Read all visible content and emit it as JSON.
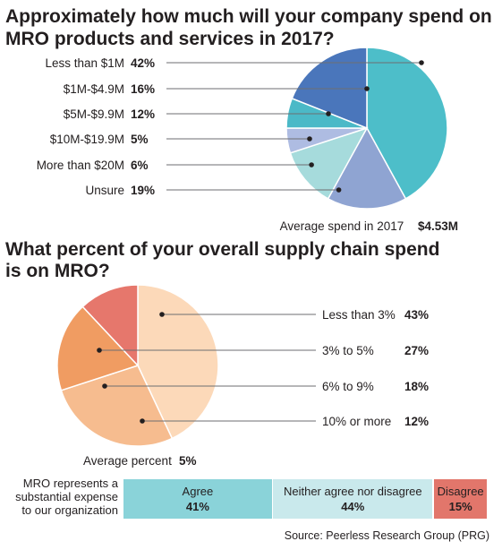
{
  "colors": {
    "text": "#231f20",
    "leader": "#6d6e71",
    "separator": "#ffffff"
  },
  "chart_data": [
    {
      "type": "pie",
      "title": "Approximately how much will your company spend on MRO products and services in 2017?",
      "categories": [
        "Less than $1M",
        "$1M-$4.9M",
        "$5M-$9.9M",
        "$10M-$19.9M",
        "More than $20M",
        "Unsure"
      ],
      "value_labels": [
        "42%",
        "16%",
        "12%",
        "5%",
        "6%",
        "19%"
      ],
      "values": [
        42,
        16,
        12,
        5,
        6,
        19
      ],
      "colors": [
        "#4dbec9",
        "#8fa4d2",
        "#a6dbdc",
        "#aebce2",
        "#4bb9c7",
        "#4a76bb"
      ],
      "annotation": {
        "label": "Average spend in 2017",
        "value": "$4.53M"
      }
    },
    {
      "type": "pie",
      "title": "What percent of your overall supply chain spend is on MRO?",
      "categories": [
        "Less than 3%",
        "3% to 5%",
        "6% to 9%",
        "10% or more"
      ],
      "value_labels": [
        "43%",
        "27%",
        "18%",
        "12%"
      ],
      "values": [
        43,
        27,
        18,
        12
      ],
      "colors": [
        "#fcd9b9",
        "#f6bc8f",
        "#f09c62",
        "#e6776c"
      ],
      "annotation": {
        "label": "Average percent",
        "value": "5%"
      }
    },
    {
      "type": "bar",
      "title": "MRO represents a substantial expense to our organization",
      "categories": [
        "Agree",
        "Neither agree nor disagree",
        "Disagree"
      ],
      "value_labels": [
        "41%",
        "44%",
        "15%"
      ],
      "values": [
        41,
        44,
        15
      ],
      "colors": [
        "#8ad3d9",
        "#c9e9ec",
        "#e2766b"
      ]
    }
  ],
  "source": "Source: Peerless Research Group (PRG)"
}
